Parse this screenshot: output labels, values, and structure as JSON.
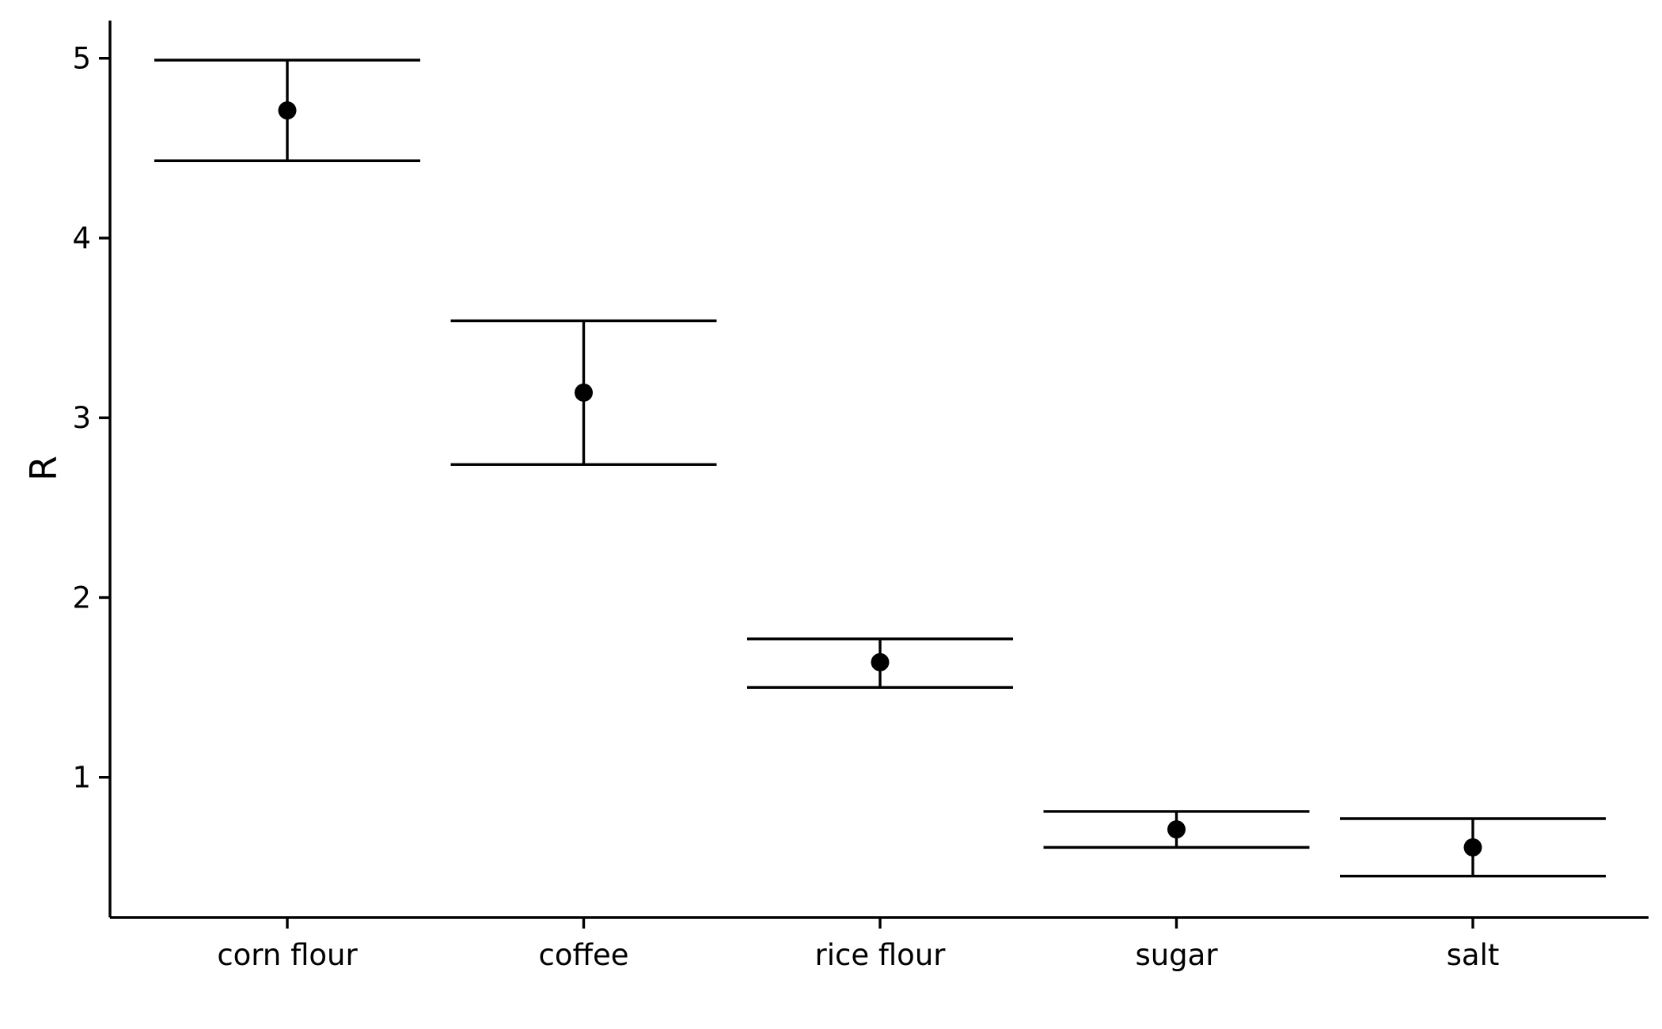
{
  "chart_data": {
    "type": "scatter",
    "categories": [
      "corn flour",
      "coffee",
      "rice flour",
      "sugar",
      "salt"
    ],
    "series": [
      {
        "values": [
          4.71,
          3.14,
          1.64,
          0.71,
          0.61
        ],
        "lower": [
          4.43,
          2.74,
          1.5,
          0.61,
          0.45
        ],
        "upper": [
          4.99,
          3.54,
          1.77,
          0.81,
          0.77
        ]
      }
    ],
    "xlabel": "",
    "ylabel": "R",
    "yticks": [
      "1",
      "2",
      "3",
      "4",
      "5"
    ],
    "ylim": [
      0.22,
      5.21
    ],
    "grid": false,
    "legend": "none",
    "colors": {
      "ink": "#000000",
      "background": "#ffffff"
    }
  }
}
